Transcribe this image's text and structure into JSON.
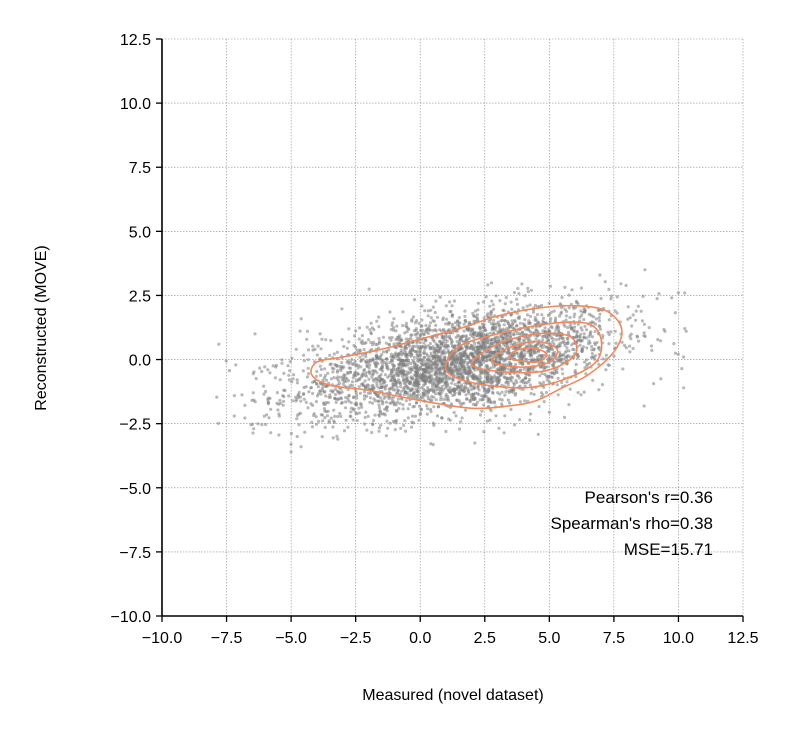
{
  "chart_data": {
    "type": "scatter",
    "xlabel": "Measured (novel dataset)",
    "ylabel": "Reconstructed (MOVE)",
    "xlim": [
      -10,
      12.5
    ],
    "ylim": [
      -10,
      12.5
    ],
    "xticks": [
      "−10.0",
      "−7.5",
      "−5.0",
      "−2.5",
      "0.0",
      "2.5",
      "5.0",
      "7.5",
      "10.0",
      "12.5"
    ],
    "yticks": [
      "−10.0",
      "−7.5",
      "−5.0",
      "−2.5",
      "0.0",
      "2.5",
      "5.0",
      "7.5",
      "10.0",
      "12.5"
    ],
    "grid": true,
    "point_color": "#808080",
    "contour_color": "#f08a5d",
    "density": {
      "center": [
        1.5,
        -0.1
      ],
      "x_spread": 3.0,
      "y_spread": 0.95,
      "x_range": [
        -8,
        10.3
      ],
      "y_range": [
        -3.6,
        3.5
      ]
    },
    "outliers": [
      [
        -7.8,
        0.6
      ],
      [
        -7.2,
        -2.2
      ],
      [
        -6.4,
        1.0
      ],
      [
        -5.0,
        -3.6
      ],
      [
        -5.0,
        -3.3
      ],
      [
        8.7,
        3.5
      ],
      [
        10.0,
        2.6
      ],
      [
        10.2,
        0.1
      ],
      [
        10.2,
        -1.1
      ],
      [
        10.3,
        1.1
      ]
    ],
    "contours": [
      [
        [
          -4.2,
          -0.6
        ],
        [
          -3.5,
          -1.0
        ],
        [
          -2.0,
          -1.2
        ],
        [
          0.0,
          -1.6
        ],
        [
          2.0,
          -1.9
        ],
        [
          3.5,
          -1.8
        ],
        [
          4.5,
          -1.6
        ],
        [
          5.5,
          -1.1
        ],
        [
          6.5,
          -0.6
        ],
        [
          7.5,
          0.3
        ],
        [
          7.8,
          1.2
        ],
        [
          7.2,
          1.9
        ],
        [
          6.0,
          2.1
        ],
        [
          4.5,
          2.0
        ],
        [
          3.0,
          1.7
        ],
        [
          1.5,
          1.2
        ],
        [
          0.0,
          0.8
        ],
        [
          -1.5,
          0.4
        ],
        [
          -3.0,
          0.1
        ],
        [
          -4.0,
          -0.1
        ]
      ],
      [
        [
          1.0,
          -0.4
        ],
        [
          2.0,
          -0.9
        ],
        [
          4.0,
          -1.1
        ],
        [
          5.5,
          -0.8
        ],
        [
          6.8,
          -0.1
        ],
        [
          7.0,
          0.8
        ],
        [
          6.5,
          1.4
        ],
        [
          5.0,
          1.4
        ],
        [
          3.0,
          1.0
        ],
        [
          1.5,
          0.5
        ]
      ],
      [
        [
          2.0,
          -0.2
        ],
        [
          3.5,
          -0.5
        ],
        [
          5.0,
          -0.4
        ],
        [
          6.0,
          0.2
        ],
        [
          5.8,
          0.9
        ],
        [
          4.5,
          1.0
        ],
        [
          3.0,
          0.6
        ]
      ],
      [
        [
          2.8,
          -0.1
        ],
        [
          4.0,
          -0.3
        ],
        [
          5.0,
          -0.1
        ],
        [
          5.3,
          0.4
        ],
        [
          4.5,
          0.7
        ],
        [
          3.3,
          0.4
        ]
      ],
      [
        [
          3.5,
          0.05
        ],
        [
          4.5,
          -0.1
        ],
        [
          4.9,
          0.2
        ],
        [
          4.4,
          0.45
        ],
        [
          3.7,
          0.35
        ]
      ]
    ],
    "annotations": [
      "Pearson's r=0.36",
      "Spearman's rho=0.38",
      "MSE=15.71"
    ]
  }
}
